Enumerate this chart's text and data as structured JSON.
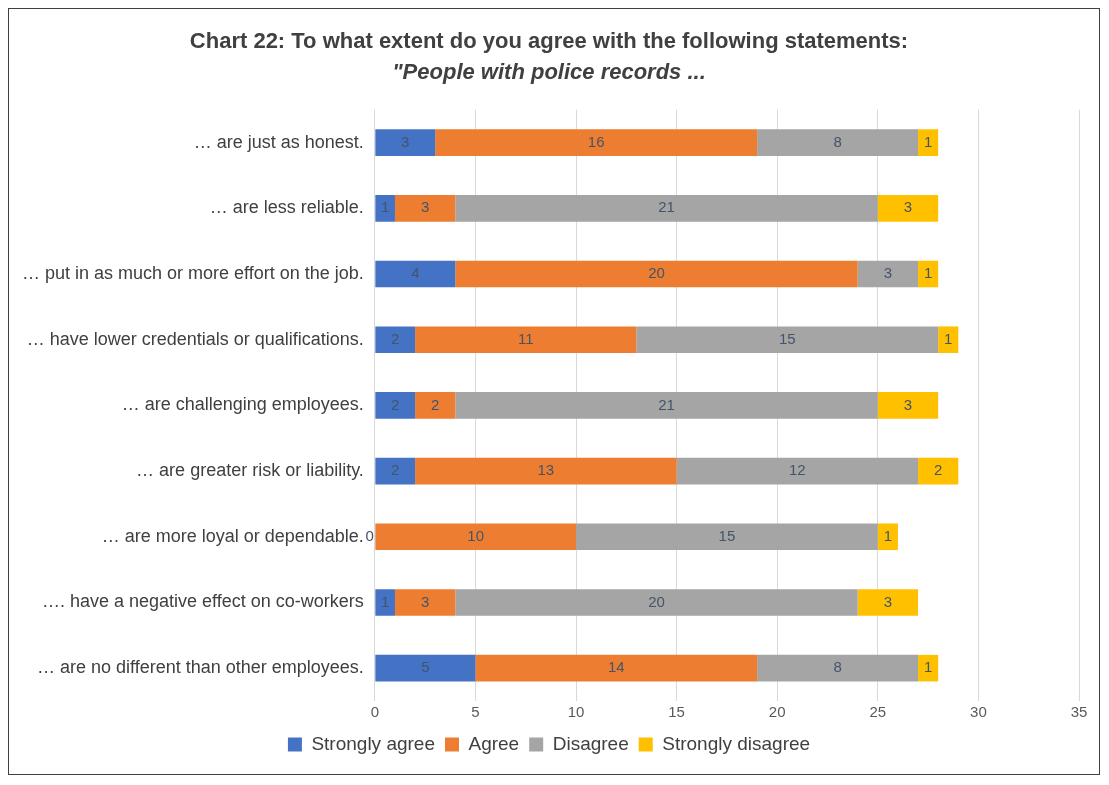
{
  "chart_data": {
    "type": "bar",
    "orientation": "horizontal",
    "stacked": true,
    "title": "Chart 22: To what extent do you agree with the following statements:",
    "subtitle": "\"People with police records ...",
    "categories": [
      "… are just as honest.",
      "… are less reliable.",
      "… put in as much or more effort on the job.",
      "… have lower credentials or qualifications.",
      "… are challenging employees.",
      "… are greater risk or liability.",
      "… are more loyal or dependable.",
      "…. have a negative effect on co-workers",
      "… are no different than other employees."
    ],
    "series": [
      {
        "name": "Strongly agree",
        "color": "#4472c4",
        "values": [
          3,
          1,
          4,
          2,
          2,
          2,
          0,
          1,
          5
        ],
        "value_labels": [
          "3",
          "1",
          "4",
          "2",
          "2",
          "2",
          null,
          "1",
          "5"
        ]
      },
      {
        "name": "Agree",
        "color": "#ed7d31",
        "values": [
          16,
          3,
          20,
          11,
          2,
          13,
          10,
          3,
          14
        ],
        "value_labels": [
          "16",
          "3",
          "20",
          "11",
          "2",
          "13",
          "10",
          "3",
          "14"
        ]
      },
      {
        "name": "Disagree",
        "color": "#a5a5a5",
        "values": [
          8,
          21,
          3,
          15,
          21,
          12,
          15,
          20,
          8
        ],
        "value_labels": [
          "8",
          "21",
          "3",
          "15",
          "21",
          "12",
          "15",
          "20",
          "8"
        ]
      },
      {
        "name": "Strongly disagree",
        "color": "#ffc000",
        "values": [
          1,
          3,
          1,
          1,
          3,
          2,
          1,
          3,
          1
        ],
        "value_labels": [
          "1",
          "3",
          "1",
          "1",
          "3",
          "2",
          "1",
          "3",
          "1"
        ]
      }
    ],
    "annotations": [
      {
        "text": "0",
        "x": 0,
        "y": "… are more loyal or dependable."
      }
    ],
    "xlim": [
      0,
      35
    ],
    "xticks": [
      0,
      5,
      10,
      15,
      20,
      25,
      30,
      35
    ],
    "grid": "x",
    "legend": "bottom"
  }
}
